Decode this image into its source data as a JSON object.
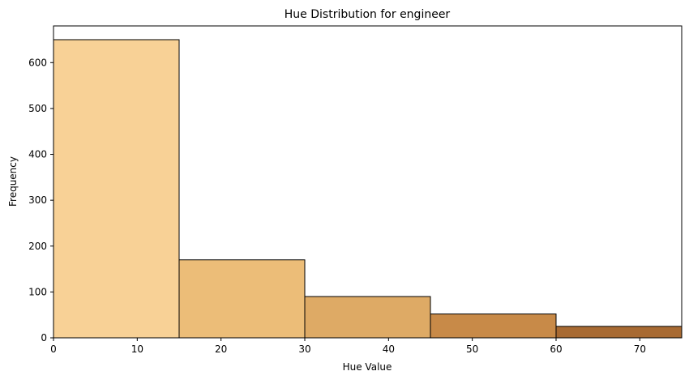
{
  "chart_data": {
    "type": "bar",
    "title": "Hue Distribution for engineer",
    "xlabel": "Hue Value",
    "ylabel": "Frequency",
    "xlim": [
      0,
      75
    ],
    "ylim": [
      0,
      680
    ],
    "grid": false,
    "legend": "none",
    "bins": [
      {
        "x0": 0,
        "x1": 15,
        "value": 650,
        "color": "#F8D196"
      },
      {
        "x0": 15,
        "x1": 30,
        "value": 170,
        "color": "#ECBD78"
      },
      {
        "x0": 30,
        "x1": 45,
        "value": 90,
        "color": "#DEAA65"
      },
      {
        "x0": 45,
        "x1": 60,
        "value": 52,
        "color": "#C88A48"
      },
      {
        "x0": 60,
        "x1": 75,
        "value": 25,
        "color": "#A86A32"
      }
    ],
    "x_ticks": [
      0,
      10,
      20,
      30,
      40,
      50,
      60,
      70
    ],
    "y_ticks": [
      0,
      100,
      200,
      300,
      400,
      500,
      600
    ]
  }
}
